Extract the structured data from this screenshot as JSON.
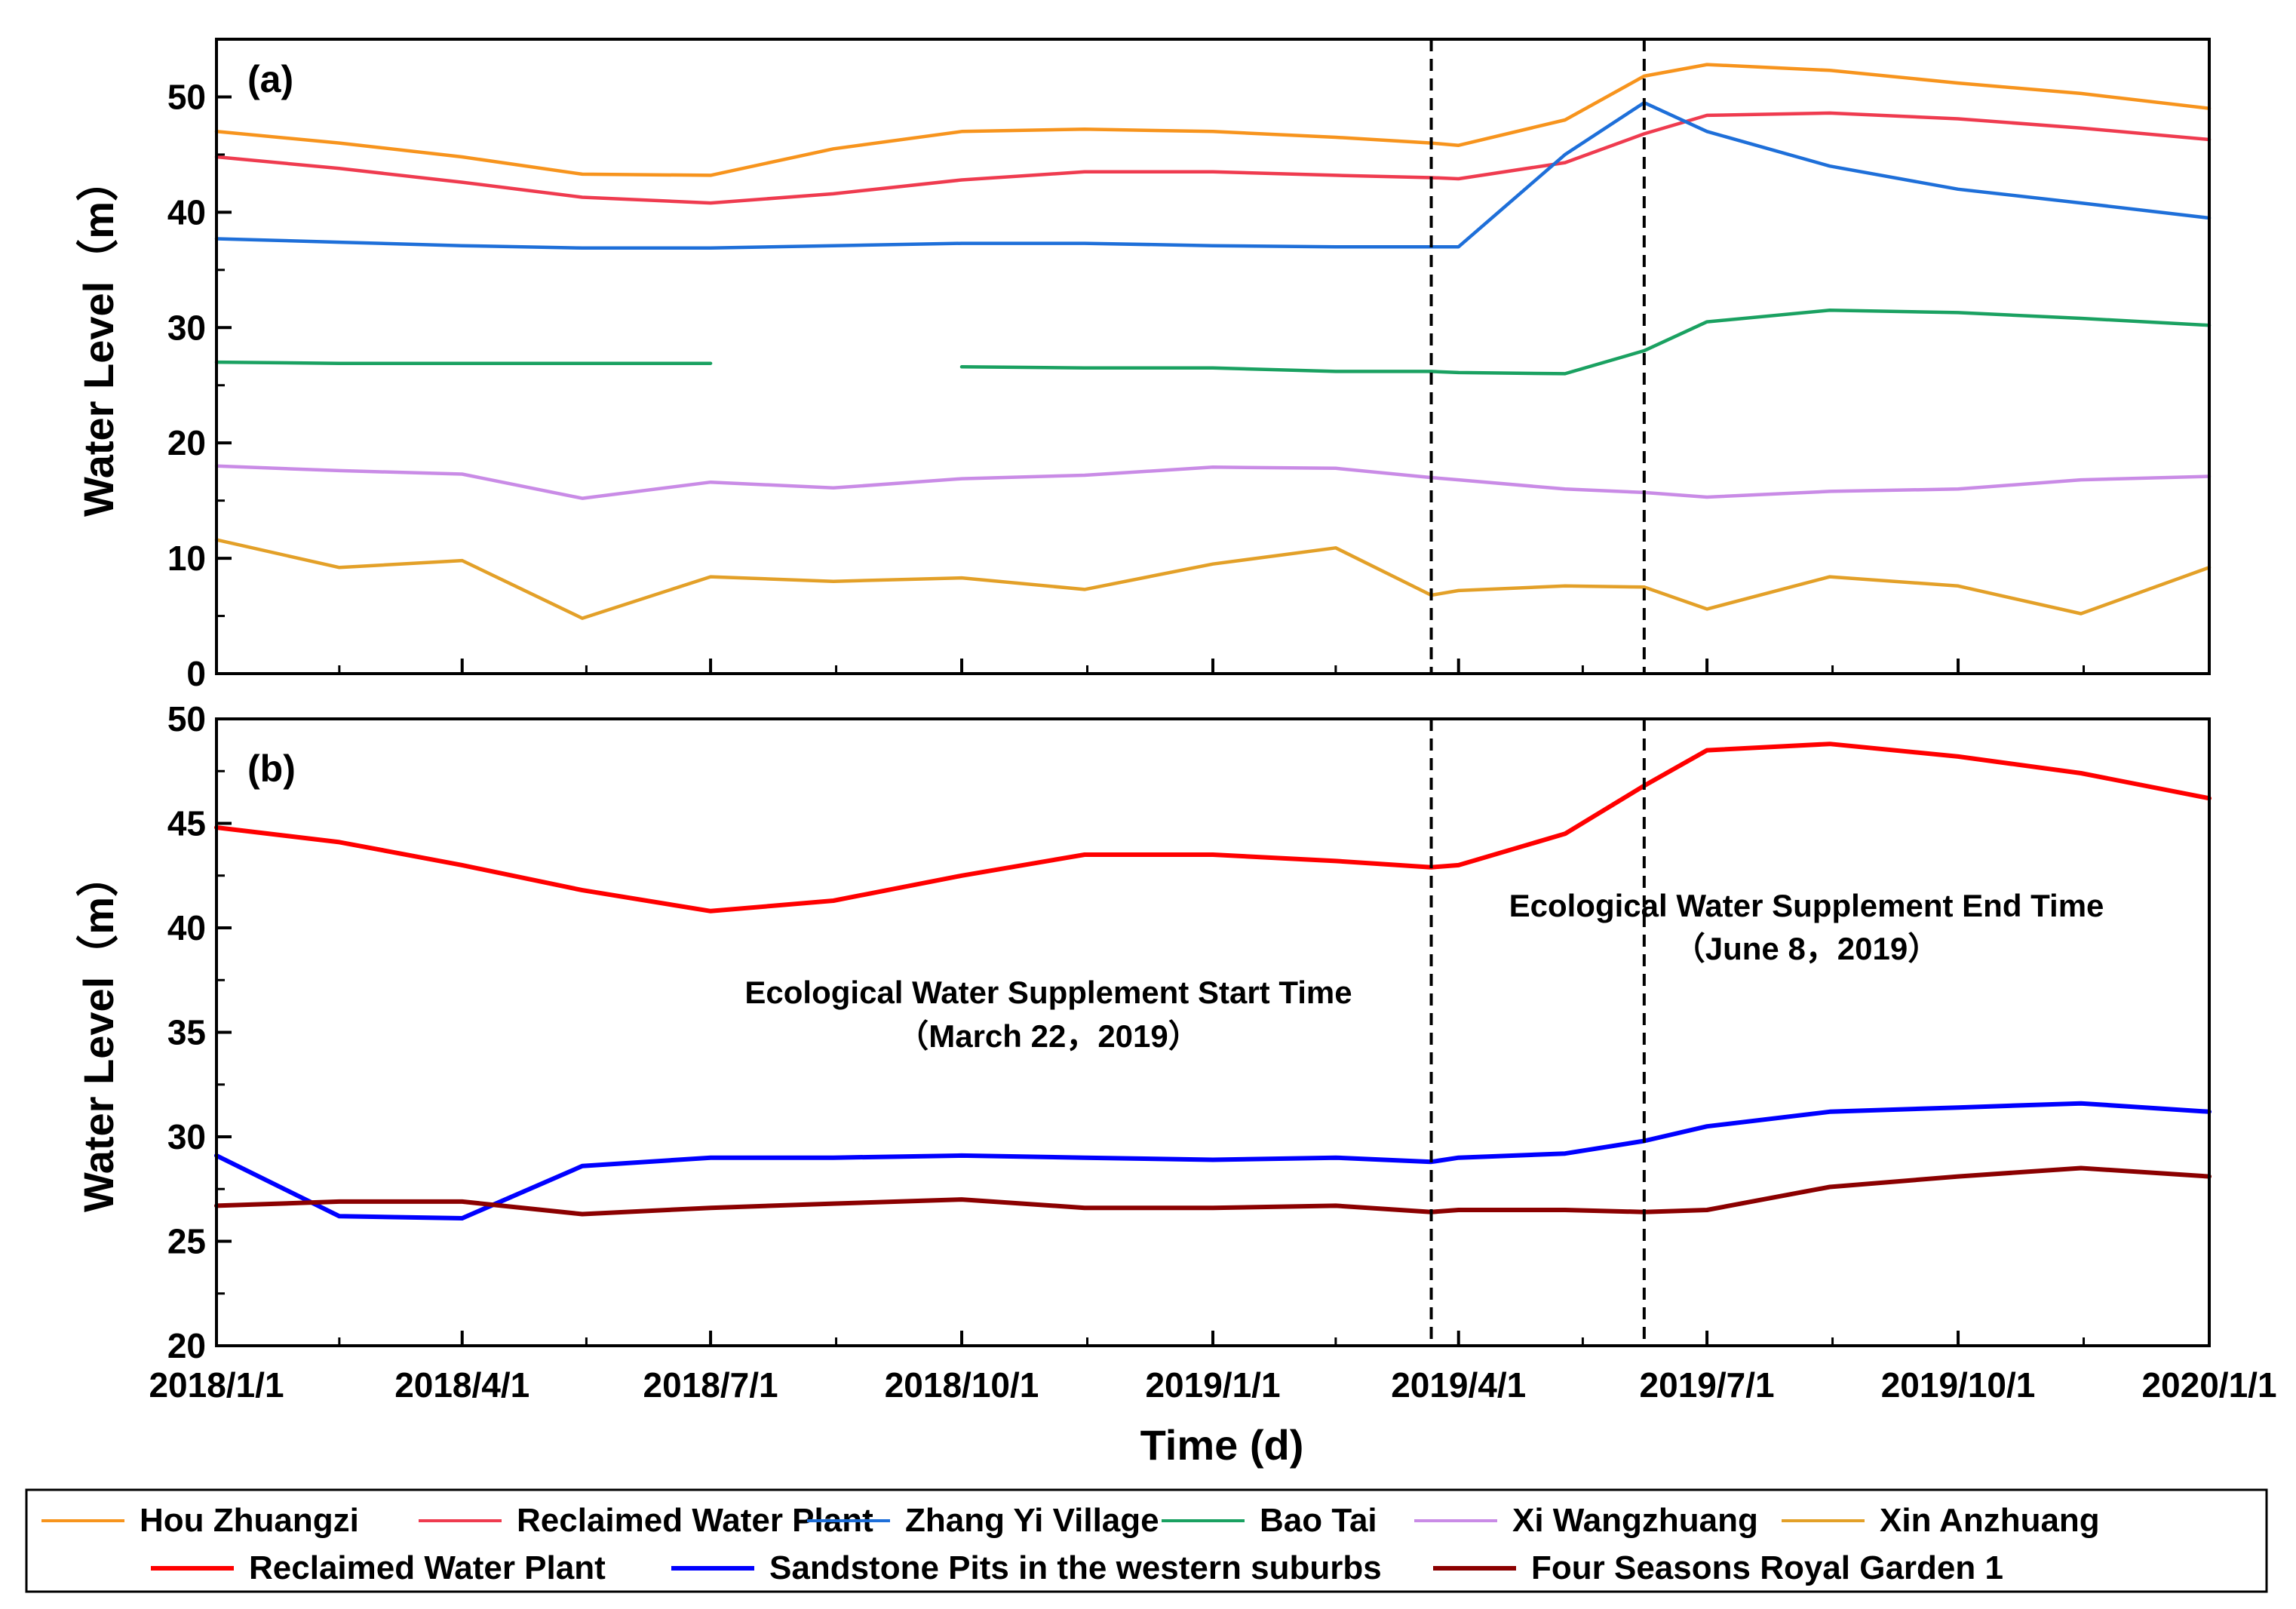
{
  "chart_data": [
    {
      "panel": "(a)",
      "type": "line",
      "ylabel": "Water Level（m）",
      "ylim": [
        0,
        55
      ],
      "yticks": [
        0,
        10,
        20,
        30,
        40,
        50
      ],
      "x": [
        "2018/1/1",
        "2018/2/15",
        "2018/4/1",
        "2018/5/15",
        "2018/7/1",
        "2018/8/15",
        "2018/10/1",
        "2018/11/15",
        "2019/1/1",
        "2019/2/15",
        "2019/3/22",
        "2019/4/1",
        "2019/5/10",
        "2019/6/8",
        "2019/7/1",
        "2019/8/15",
        "2019/10/1",
        "2019/11/15",
        "2020/1/1"
      ],
      "series": [
        {
          "name": "Hou Zhuangzi",
          "color": "#f7941d",
          "values": [
            47.0,
            46.0,
            44.8,
            43.3,
            43.2,
            45.5,
            47.0,
            47.2,
            47.0,
            46.5,
            46.0,
            45.8,
            48.0,
            51.8,
            52.8,
            52.3,
            51.2,
            50.3,
            49.0
          ]
        },
        {
          "name": "Reclaimed Water Plant",
          "color": "#ef3b4f",
          "values": [
            44.8,
            43.8,
            42.6,
            41.3,
            40.8,
            41.6,
            42.8,
            43.5,
            43.5,
            43.2,
            43.0,
            42.9,
            44.3,
            46.8,
            48.4,
            48.6,
            48.1,
            47.3,
            46.3
          ]
        },
        {
          "name": "Zhang Yi Village",
          "color": "#1e6fd9",
          "values": [
            37.7,
            37.4,
            37.1,
            36.9,
            36.9,
            37.1,
            37.3,
            37.3,
            37.1,
            37.0,
            37.0,
            37.0,
            45.0,
            49.5,
            47.0,
            44.0,
            42.0,
            40.8,
            39.5
          ]
        },
        {
          "name": "Bao Tai",
          "color": "#1aa161",
          "values": [
            27.0,
            26.9,
            26.9,
            26.9,
            26.9,
            null,
            26.6,
            26.5,
            26.5,
            26.2,
            26.2,
            26.1,
            26.0,
            28.0,
            30.5,
            31.5,
            31.3,
            30.8,
            30.2
          ]
        },
        {
          "name": "Xi Wangzhuang",
          "color": "#c98be6",
          "values": [
            18.0,
            17.6,
            17.3,
            15.2,
            16.6,
            16.1,
            16.9,
            17.2,
            17.9,
            17.8,
            17.0,
            16.8,
            16.0,
            15.7,
            15.3,
            15.8,
            16.0,
            16.8,
            17.1
          ]
        },
        {
          "name": "Xin Anzhuang",
          "color": "#e3a028",
          "values": [
            11.6,
            9.2,
            9.8,
            4.8,
            8.4,
            8.0,
            8.3,
            7.3,
            9.5,
            10.9,
            6.8,
            7.2,
            7.6,
            7.5,
            5.6,
            8.4,
            7.6,
            5.2,
            9.2
          ]
        }
      ]
    },
    {
      "panel": "(b)",
      "type": "line",
      "xlabel": "Time (d)",
      "ylabel": "Water Level（m）",
      "ylim": [
        20,
        50
      ],
      "yticks": [
        20,
        25,
        30,
        35,
        40,
        45,
        50
      ],
      "xticks": [
        "2018/1/1",
        "2018/4/1",
        "2018/7/1",
        "2018/10/1",
        "2019/1/1",
        "2019/4/1",
        "2019/7/1",
        "2019/10/1",
        "2020/1/1"
      ],
      "x": [
        "2018/1/1",
        "2018/2/15",
        "2018/4/1",
        "2018/5/15",
        "2018/7/1",
        "2018/8/15",
        "2018/10/1",
        "2018/11/15",
        "2019/1/1",
        "2019/2/15",
        "2019/3/22",
        "2019/4/1",
        "2019/5/10",
        "2019/6/8",
        "2019/7/1",
        "2019/8/15",
        "2019/10/1",
        "2019/11/15",
        "2020/1/1"
      ],
      "series": [
        {
          "name": "Reclaimed Water Plant",
          "color": "#ff0000",
          "values": [
            44.8,
            44.1,
            43.0,
            41.8,
            40.8,
            41.3,
            42.5,
            43.5,
            43.5,
            43.2,
            42.9,
            43.0,
            44.5,
            46.8,
            48.5,
            48.8,
            48.2,
            47.4,
            46.2
          ]
        },
        {
          "name": "Sandstone Pits in the western suburbs",
          "color": "#0000ff",
          "values": [
            29.1,
            26.2,
            26.1,
            28.6,
            29.0,
            29.0,
            29.1,
            29.0,
            28.9,
            29.0,
            28.8,
            29.0,
            29.2,
            29.8,
            30.5,
            31.2,
            31.4,
            31.6,
            31.2
          ]
        },
        {
          "name": "Four Seasons Royal Garden 1",
          "color": "#8b0000",
          "values": [
            26.7,
            26.9,
            26.9,
            26.3,
            26.6,
            26.8,
            27.0,
            26.6,
            26.6,
            26.7,
            26.4,
            26.5,
            26.5,
            26.4,
            26.5,
            27.6,
            28.1,
            28.5,
            28.1
          ]
        }
      ]
    }
  ],
  "panels": {
    "a": {
      "label": "(a)"
    },
    "b": {
      "label": "(b)"
    }
  },
  "annotations": {
    "start_line1": "Ecological Water Supplement Start Time",
    "start_line2": "（March 22，2019）",
    "end_line1": "Ecological Water Supplement End Time",
    "end_line2": "（June 8，2019）"
  },
  "legend": {
    "row1": [
      {
        "name": "Hou Zhuangzi",
        "color": "#f7941d"
      },
      {
        "name": "Reclaimed Water Plant",
        "color": "#ef3b4f"
      },
      {
        "name": "Zhang Yi Village",
        "color": "#1e6fd9"
      },
      {
        "name": "Bao Tai",
        "color": "#1aa161"
      },
      {
        "name": "Xi Wangzhuang",
        "color": "#c98be6"
      },
      {
        "name": "Xin Anzhuang",
        "color": "#e3a028"
      }
    ],
    "row2": [
      {
        "name": "Reclaimed Water Plant",
        "color": "#ff0000"
      },
      {
        "name": "Sandstone Pits in the western suburbs",
        "color": "#0000ff"
      },
      {
        "name": "Four Seasons Royal Garden 1",
        "color": "#8b0000"
      }
    ]
  }
}
